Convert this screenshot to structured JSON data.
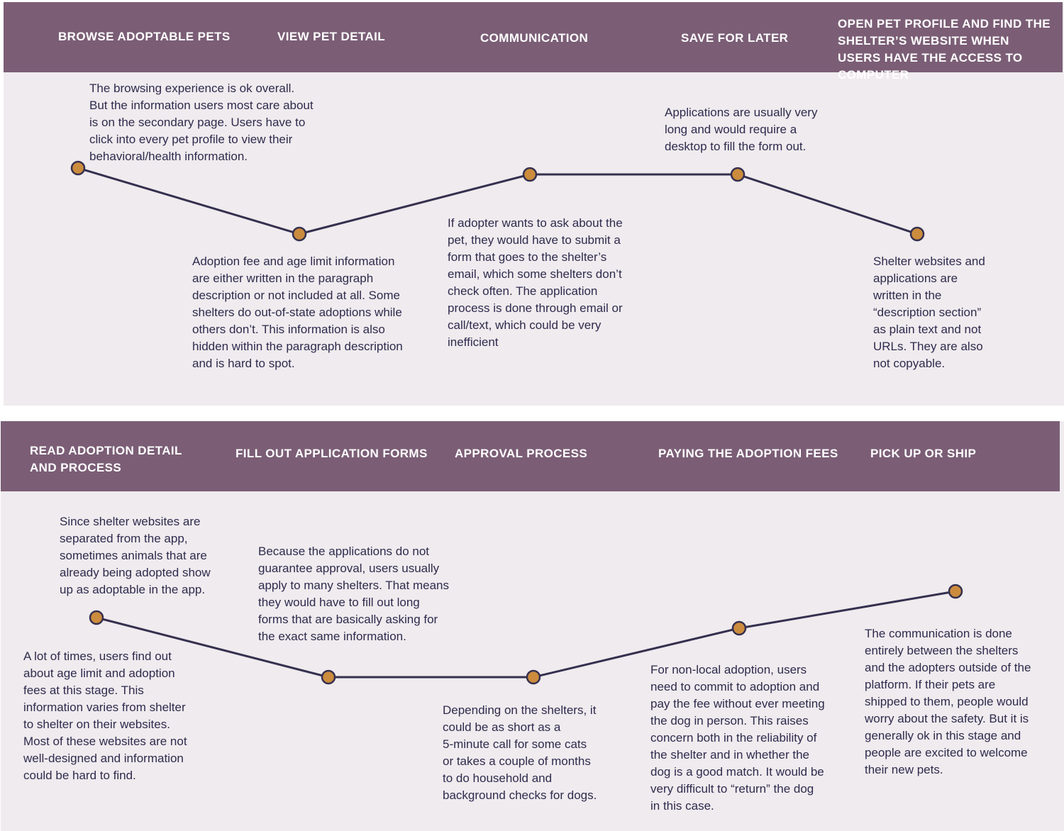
{
  "journey_top": {
    "stages": [
      "BROWSE ADOPTABLE PETS",
      "VIEW PET DETAIL",
      "COMMUNICATION",
      "SAVE FOR LATER",
      "OPEN PET PROFILE AND FIND THE SHELTER’S WEBSITE WHEN USERS HAVE THE ACCESS TO COMPUTER"
    ],
    "notes": [
      "The browsing experience is ok overall.\nBut the information users most care about\nis on the secondary page. Users have to\nclick into every pet profile to view their\nbehavioral/health information.",
      "Adoption fee and age limit information\nare either written in the paragraph\ndescription or not included at all. Some\nshelters do out-of-state adoptions while\nothers don’t. This information is also\nhidden within the paragraph description\nand is hard to spot.",
      "If adopter wants to ask about the\npet, they would have to submit a\nform that goes to the shelter’s\nemail, which some shelters don’t\ncheck often. The application\nprocess is done through email or\ncall/text, which could be very\ninefficient",
      "Applications are usually very\nlong and would require a\ndesktop to fill the form out.",
      "Shelter websites and\napplications are\nwritten in the\n“description section”\nas plain text and not\nURLs. They are also\nnot copyable."
    ]
  },
  "journey_bottom": {
    "stages": [
      "READ ADOPTION DETAIL AND PROCESS",
      "FILL OUT APPLICATION FORMS",
      "APPROVAL PROCESS",
      "PAYING THE ADOPTION FEES",
      "PICK UP OR SHIP"
    ],
    "notes": [
      "Since shelter websites are\nseparated from the app,\nsometimes animals that are\nalready being adopted show\nup as adoptable in the app.",
      "A lot of times, users find out\nabout age limit and adoption\nfees at this stage. This\ninformation varies from shelter\nto shelter on their websites.\nMost of these websites are not\nwell-designed and information\ncould be hard to find.",
      "Because the applications do not\nguarantee approval, users usually\napply to many shelters. That means\nthey would have to fill out long\nforms that are basically asking for\nthe exact same information.",
      "Depending on the shelters, it\ncould be as short as a\n5-minute call for some cats\nor takes a couple of months\nto do household and\nbackground checks for dogs.",
      "For non-local adoption, users\nneed to commit to adoption and\npay the fee without ever meeting\nthe dog in person. This raises\nconcern both in the reliability of\nthe shelter and in whether the\ndog is a good match. It would be\nvery difficult to “return” the dog\nin this case.",
      "The communication is done\nentirely between the shelters\nand the adopters outside of the\nplatform. If their pets are\nshipped to them, people would\nworry about the safety. But it is\ngenerally ok in this stage and\npeople are excited to welcome\ntheir new pets."
    ]
  },
  "colors": {
    "header_bg": "#7b5e76",
    "panel_bg": "#efebee",
    "text": "#2f2b4d",
    "line": "#35304f",
    "dot": "#cc8c3d"
  }
}
